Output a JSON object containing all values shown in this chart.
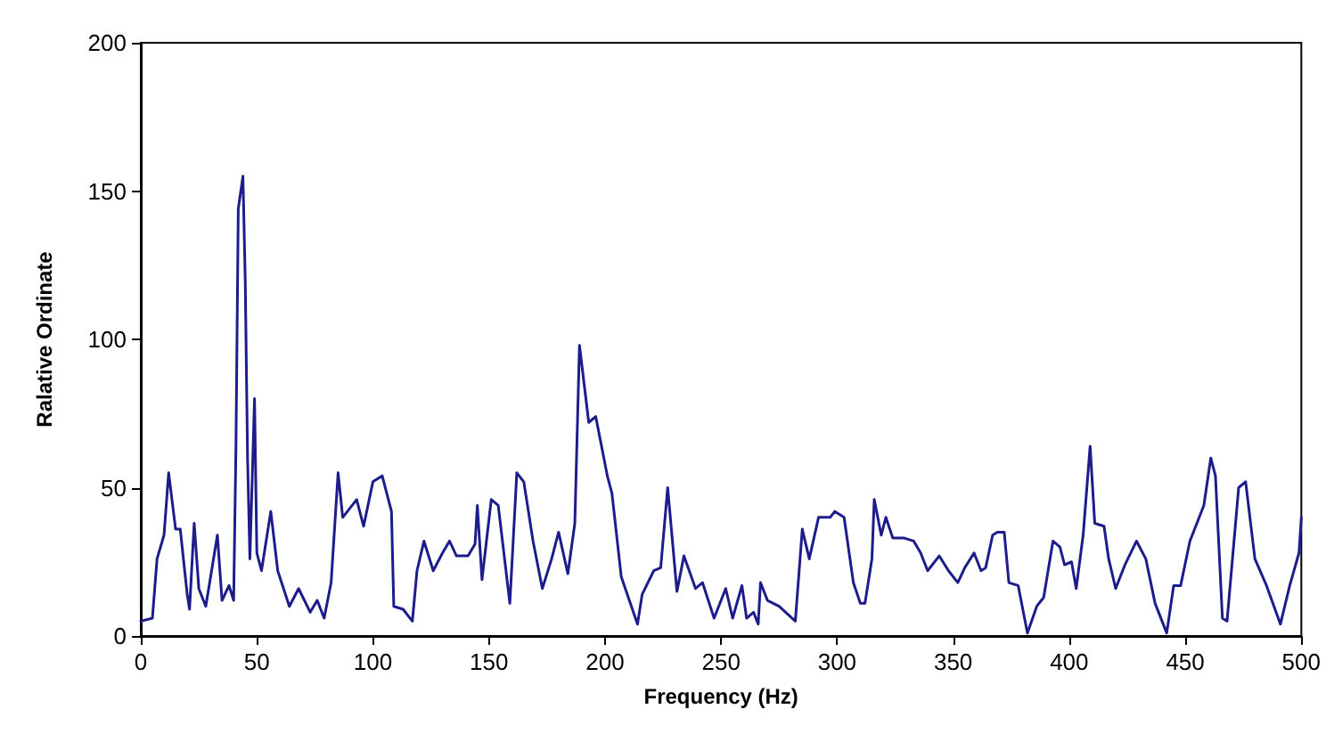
{
  "chart_data": {
    "type": "line",
    "xlabel": "Frequency (Hz)",
    "ylabel": "Ralative Ordinate",
    "x": [
      0,
      5,
      7,
      10,
      12,
      15,
      17,
      20,
      21,
      23,
      25,
      28,
      33,
      35,
      38,
      40,
      41,
      42,
      44,
      45,
      46,
      47,
      49,
      50,
      52,
      56,
      59,
      64,
      68,
      73,
      76,
      79,
      82,
      85,
      87,
      93,
      96,
      100,
      104,
      108,
      109,
      113,
      117,
      119,
      122,
      126,
      130,
      133,
      136,
      141,
      144,
      145,
      147,
      151,
      154,
      159,
      162,
      165,
      169,
      173,
      177,
      180,
      184,
      187,
      189,
      191,
      193,
      196,
      201,
      203,
      207,
      214,
      216,
      221,
      224,
      227,
      231,
      234,
      239,
      242,
      247,
      252,
      255,
      259,
      261,
      264,
      266,
      267,
      270,
      275,
      282,
      285,
      288,
      292,
      297,
      299,
      303,
      307,
      310,
      312,
      315,
      316,
      319,
      321,
      324,
      329,
      333,
      336,
      339,
      344,
      348,
      352,
      355,
      359,
      362,
      364,
      367,
      369,
      372,
      374,
      378,
      382,
      386,
      389,
      393,
      396,
      398,
      401,
      403,
      406,
      409,
      411,
      415,
      417,
      420,
      424,
      429,
      433,
      437,
      442,
      445,
      448,
      452,
      458,
      461,
      463,
      466,
      468,
      473,
      476,
      480,
      485,
      491,
      495,
      499,
      500
    ],
    "values": [
      5,
      6,
      26,
      34,
      55,
      36,
      36,
      14,
      9,
      38,
      16,
      10,
      34,
      12,
      17,
      12,
      64,
      144,
      155,
      120,
      60,
      26,
      80,
      28,
      22,
      42,
      22,
      10,
      16,
      8,
      12,
      6,
      18,
      55,
      40,
      46,
      37,
      52,
      54,
      42,
      10,
      9,
      5,
      22,
      32,
      22,
      28,
      32,
      27,
      27,
      31,
      44,
      19,
      46,
      44,
      11,
      55,
      52,
      32,
      16,
      26,
      35,
      21,
      38,
      98,
      85,
      72,
      74,
      54,
      48,
      20,
      4,
      14,
      22,
      23,
      50,
      15,
      27,
      16,
      18,
      6,
      16,
      6,
      17,
      6,
      8,
      4,
      18,
      12,
      10,
      5,
      36,
      26,
      40,
      40,
      42,
      40,
      18,
      11,
      11,
      26,
      46,
      34,
      40,
      33,
      33,
      32,
      28,
      22,
      27,
      22,
      18,
      23,
      28,
      22,
      23,
      34,
      35,
      35,
      18,
      17,
      1,
      10,
      13,
      32,
      30,
      24,
      25,
      16,
      34,
      64,
      38,
      37,
      26,
      16,
      24,
      32,
      26,
      11,
      1,
      17,
      17,
      32,
      44,
      60,
      54,
      6,
      5,
      50,
      52,
      26,
      17,
      4,
      17,
      28,
      40
    ],
    "color": "#1c1c8c",
    "xlim": [
      0,
      500
    ],
    "xticks": [
      0,
      50,
      100,
      150,
      200,
      250,
      300,
      350,
      400,
      450,
      500
    ],
    "ylim": [
      0,
      200
    ],
    "yticks": [
      0,
      50,
      100,
      150,
      200
    ],
    "grid": false,
    "marker": "none",
    "line_style": "solid"
  }
}
